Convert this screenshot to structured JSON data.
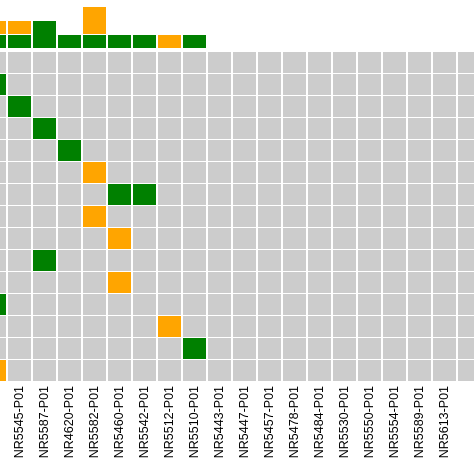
{
  "chart_data": {
    "type": "oncoprint",
    "categories": [
      null,
      "NR5545-P01",
      "NR5587-P01",
      "NR4620-P01",
      "NR5582-P01",
      "NR5460-P01",
      "NR5542-P01",
      "NR5512-P01",
      "NR5510-P01",
      "NR5443-P01",
      "NR5447-P01",
      "NR5457-P01",
      "NR5478-P01",
      "NR5484-P01",
      "NR5530-P01",
      "NR5550-P01",
      "NR5554-P01",
      "NR5589-P01",
      "NR5613-P01",
      null
    ],
    "series": [
      {
        "color": "#008000",
        "values": [
          1,
          1,
          2,
          1,
          1,
          1,
          1,
          0,
          1,
          0,
          0,
          0,
          0,
          0,
          0,
          0,
          0,
          0,
          0,
          0
        ]
      },
      {
        "color": "#ffa500",
        "values": [
          1,
          1,
          0,
          0,
          2,
          0,
          0,
          1,
          0,
          0,
          0,
          0,
          0,
          0,
          0,
          0,
          0,
          0,
          0,
          0
        ]
      }
    ],
    "ylim": [
      0,
      3
    ],
    "empty_color": "#cccccc",
    "matrix": [
      [
        null,
        null,
        null,
        null,
        null,
        null,
        null,
        null,
        null,
        null,
        null,
        null,
        null,
        null,
        null,
        null,
        null,
        null,
        null,
        null
      ],
      [
        "#008000",
        null,
        null,
        null,
        null,
        null,
        null,
        null,
        null,
        null,
        null,
        null,
        null,
        null,
        null,
        null,
        null,
        null,
        null,
        null
      ],
      [
        null,
        "#008000",
        null,
        null,
        null,
        null,
        null,
        null,
        null,
        null,
        null,
        null,
        null,
        null,
        null,
        null,
        null,
        null,
        null,
        null
      ],
      [
        null,
        null,
        "#008000",
        null,
        null,
        null,
        null,
        null,
        null,
        null,
        null,
        null,
        null,
        null,
        null,
        null,
        null,
        null,
        null,
        null
      ],
      [
        null,
        null,
        null,
        "#008000",
        null,
        null,
        null,
        null,
        null,
        null,
        null,
        null,
        null,
        null,
        null,
        null,
        null,
        null,
        null,
        null
      ],
      [
        null,
        null,
        null,
        null,
        "#ffa500",
        null,
        null,
        null,
        null,
        null,
        null,
        null,
        null,
        null,
        null,
        null,
        null,
        null,
        null,
        null
      ],
      [
        null,
        null,
        null,
        null,
        null,
        "#008000",
        "#008000",
        null,
        null,
        null,
        null,
        null,
        null,
        null,
        null,
        null,
        null,
        null,
        null,
        null
      ],
      [
        null,
        null,
        null,
        null,
        "#ffa500",
        null,
        null,
        null,
        null,
        null,
        null,
        null,
        null,
        null,
        null,
        null,
        null,
        null,
        null,
        null
      ],
      [
        null,
        null,
        null,
        null,
        null,
        "#ffa500",
        null,
        null,
        null,
        null,
        null,
        null,
        null,
        null,
        null,
        null,
        null,
        null,
        null,
        null
      ],
      [
        null,
        null,
        "#008000",
        null,
        null,
        null,
        null,
        null,
        null,
        null,
        null,
        null,
        null,
        null,
        null,
        null,
        null,
        null,
        null,
        null
      ],
      [
        null,
        null,
        null,
        null,
        null,
        "#ffa500",
        null,
        null,
        null,
        null,
        null,
        null,
        null,
        null,
        null,
        null,
        null,
        null,
        null,
        null
      ],
      [
        "#008000",
        null,
        null,
        null,
        null,
        null,
        null,
        null,
        null,
        null,
        null,
        null,
        null,
        null,
        null,
        null,
        null,
        null,
        null,
        null
      ],
      [
        null,
        null,
        null,
        null,
        null,
        null,
        null,
        "#ffa500",
        null,
        null,
        null,
        null,
        null,
        null,
        null,
        null,
        null,
        null,
        null,
        null
      ],
      [
        null,
        null,
        null,
        null,
        null,
        null,
        null,
        null,
        "#008000",
        null,
        null,
        null,
        null,
        null,
        null,
        null,
        null,
        null,
        null,
        null
      ],
      [
        "#ffa500",
        null,
        null,
        null,
        null,
        null,
        null,
        null,
        null,
        null,
        null,
        null,
        null,
        null,
        null,
        null,
        null,
        null,
        null,
        null
      ]
    ]
  }
}
